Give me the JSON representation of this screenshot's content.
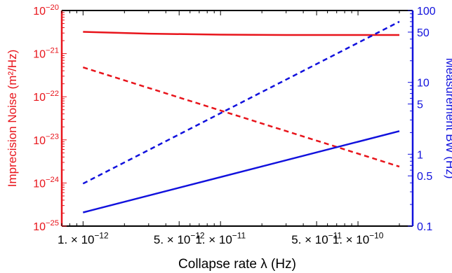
{
  "chart_data": {
    "type": "line",
    "xlabel": "Collapse rate λ (Hz)",
    "ylabel_left": "Imprecision Noise (m²/Hz)",
    "ylabel_right": "Measurement BW (Hz)",
    "x_log": true,
    "y_left_log": true,
    "y_right_log": true,
    "xlim": [
      7e-13,
      2.5e-10
    ],
    "ylim_left": [
      1e-25,
      1e-20
    ],
    "ylim_right": [
      0.1,
      100
    ],
    "x_ticks": [
      {
        "value": 1e-12,
        "base": "1. × 10",
        "exp": "−12"
      },
      {
        "value": 5e-12,
        "base": "5. × 10",
        "exp": "−12"
      },
      {
        "value": 1e-11,
        "base": "1. × 10",
        "exp": "−11"
      },
      {
        "value": 5e-11,
        "base": "5. × 10",
        "exp": "−11"
      },
      {
        "value": 1e-10,
        "base": "1. × 10",
        "exp": "−10"
      }
    ],
    "y_left_ticks": [
      {
        "value": 1e-20,
        "base": "10",
        "exp": "−20"
      },
      {
        "value": 1e-21,
        "base": "10",
        "exp": "−21"
      },
      {
        "value": 1e-22,
        "base": "10",
        "exp": "−22"
      },
      {
        "value": 1e-23,
        "base": "10",
        "exp": "−23"
      },
      {
        "value": 1e-24,
        "base": "10",
        "exp": "−24"
      },
      {
        "value": 1e-25,
        "base": "10",
        "exp": "−25"
      }
    ],
    "y_right_ticks": [
      {
        "value": 100,
        "label": "100"
      },
      {
        "value": 50,
        "label": "50"
      },
      {
        "value": 10,
        "label": "10"
      },
      {
        "value": 5,
        "label": "5"
      },
      {
        "value": 1,
        "label": "1"
      },
      {
        "value": 0.5,
        "label": "0.5"
      },
      {
        "value": 0.1,
        "label": "0.1"
      }
    ],
    "series": [
      {
        "axis": "left",
        "color": "#e8141b",
        "style": "solid",
        "x": [
          1e-12,
          3e-12,
          1e-11,
          3e-11,
          1e-10,
          2e-10
        ],
        "y": [
          3.2e-21,
          2.9e-21,
          2.75e-21,
          2.7e-21,
          2.7e-21,
          2.7e-21
        ]
      },
      {
        "axis": "left",
        "color": "#e8141b",
        "style": "dashed",
        "x": [
          1e-12,
          2e-10
        ],
        "y": [
          4.8e-22,
          2.4e-24
        ]
      },
      {
        "axis": "right",
        "color": "#1111dd",
        "style": "dashed",
        "x": [
          1e-12,
          2e-10
        ],
        "y": [
          0.39,
          70
        ]
      },
      {
        "axis": "right",
        "color": "#1111dd",
        "style": "solid",
        "x": [
          1e-12,
          2e-10
        ],
        "y": [
          0.155,
          2.1
        ]
      }
    ],
    "left_axis_color": "#e8141b",
    "right_axis_color": "#1111dd"
  }
}
